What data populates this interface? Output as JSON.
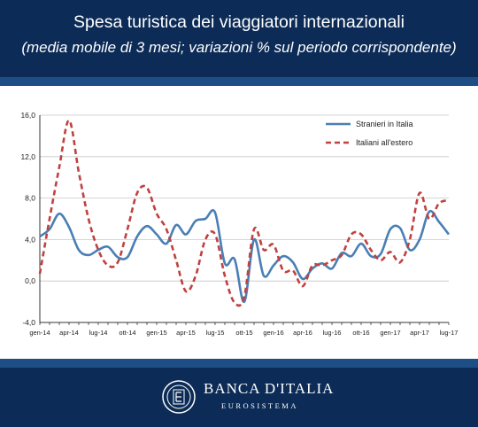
{
  "header": {
    "title": "Spesa turistica dei viaggiatori internazionali",
    "subtitle": "(media mobile di 3 mesi; variazioni % sul periodo corrispondente)"
  },
  "footer": {
    "brand": "BANCA D'ITALIA",
    "sub_brand": "EUROSISTEMA"
  },
  "chart_data": {
    "type": "line",
    "title": "",
    "xlabel": "",
    "ylabel": "",
    "ylim": [
      -4,
      16
    ],
    "yticks": [
      -4,
      0,
      4,
      8,
      12,
      16
    ],
    "ytick_labels": [
      "-4,0",
      "0,0",
      "4,0",
      "8,0",
      "12,0",
      "16,0"
    ],
    "grid": true,
    "legend_position": "top-right",
    "x": [
      "gen-14",
      "feb-14",
      "mar-14",
      "apr-14",
      "mag-14",
      "giu-14",
      "lug-14",
      "ago-14",
      "set-14",
      "ott-14",
      "nov-14",
      "dic-14",
      "gen-15",
      "feb-15",
      "mar-15",
      "apr-15",
      "mag-15",
      "giu-15",
      "lug-15",
      "ago-15",
      "set-15",
      "ott-15",
      "nov-15",
      "dic-15",
      "gen-16",
      "feb-16",
      "mar-16",
      "apr-16",
      "mag-16",
      "giu-16",
      "lug-16",
      "ago-16",
      "set-16",
      "ott-16",
      "nov-16",
      "dic-16",
      "gen-17",
      "feb-17",
      "mar-17",
      "apr-17",
      "mag-17",
      "giu-17",
      "lug-17"
    ],
    "xtick_labels": [
      "gen-14",
      "apr-14",
      "lug-14",
      "ott-14",
      "gen-15",
      "apr-15",
      "lug-15",
      "ott-15",
      "gen-16",
      "apr-16",
      "lug-16",
      "ott-16",
      "gen-17",
      "apr-17",
      "lug-17"
    ],
    "series": [
      {
        "name": "Stranieri in Italia",
        "color": "#4a7fb5",
        "style": "solid",
        "values": [
          4.3,
          5.0,
          6.5,
          5.2,
          3.0,
          2.5,
          3.0,
          3.3,
          2.3,
          2.3,
          4.3,
          5.3,
          4.5,
          3.6,
          5.4,
          4.5,
          5.8,
          6.0,
          6.6,
          1.7,
          2.1,
          -2.0,
          4.0,
          0.5,
          1.5,
          2.4,
          1.8,
          0.2,
          1.2,
          1.7,
          1.2,
          2.7,
          2.4,
          3.6,
          2.4,
          2.6,
          5.0,
          5.1,
          3.0,
          4.0,
          6.7,
          5.7,
          4.5
        ]
      },
      {
        "name": "Italiani all'estero",
        "color": "#c0413f",
        "style": "dashed",
        "values": [
          0.7,
          6.0,
          11.0,
          15.5,
          10.5,
          6.0,
          3.0,
          1.5,
          1.8,
          5.0,
          8.5,
          9.0,
          6.5,
          5.0,
          2.0,
          -1.0,
          0.5,
          4.0,
          4.5,
          0.5,
          -2.1,
          -1.5,
          5.0,
          3.0,
          3.5,
          1.0,
          1.0,
          -0.5,
          1.5,
          1.5,
          2.0,
          2.5,
          4.5,
          4.5,
          3.0,
          2.0,
          2.8,
          1.8,
          4.0,
          8.5,
          6.0,
          7.5,
          7.8
        ]
      }
    ]
  }
}
